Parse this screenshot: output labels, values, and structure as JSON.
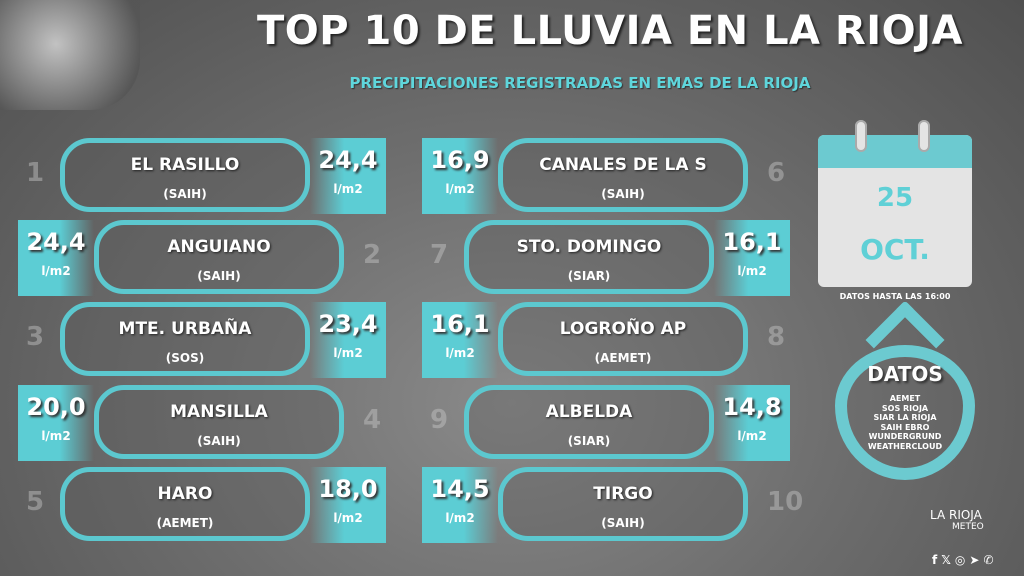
{
  "header": {
    "title": "TOP 10 DE LLUVIA EN LA RIOJA",
    "subtitle": "PRECIPITACIONES REGISTRADAS EN EMAS DE LA RIOJA"
  },
  "unit": "l/m2",
  "ranking": [
    {
      "rank": "1",
      "name": "EL RASILLO",
      "source": "(SAIH)",
      "value": "24,4"
    },
    {
      "rank": "2",
      "name": "ANGUIANO",
      "source": "(SAIH)",
      "value": "24,4"
    },
    {
      "rank": "3",
      "name": "MTE. URBAÑA",
      "source": "(SOS)",
      "value": "23,4"
    },
    {
      "rank": "4",
      "name": "MANSILLA",
      "source": "(SAIH)",
      "value": "20,0"
    },
    {
      "rank": "5",
      "name": "HARO",
      "source": "(AEMET)",
      "value": "18,0"
    },
    {
      "rank": "6",
      "name": "CANALES DE LA S",
      "source": "(SAIH)",
      "value": "16,9"
    },
    {
      "rank": "7",
      "name": "STO. DOMINGO",
      "source": "(SIAR)",
      "value": "16,1"
    },
    {
      "rank": "8",
      "name": "LOGROÑO AP",
      "source": "(AEMET)",
      "value": "16,1"
    },
    {
      "rank": "9",
      "name": "ALBELDA",
      "source": "(SIAR)",
      "value": "14,8"
    },
    {
      "rank": "10",
      "name": "TIRGO",
      "source": "(SAIH)",
      "value": "14,5"
    }
  ],
  "calendar": {
    "day": "25",
    "month": "OCT.",
    "note": "DATOS HASTA LAS 16:00"
  },
  "sources": {
    "title": "DATOS",
    "list": [
      "AEMET",
      "SOS RIOJA",
      "SIAR LA RIOJA",
      "SAIH EBRO",
      "WUNDERGRUND",
      "WEATHERCLOUD"
    ]
  },
  "logo": {
    "name": "LA RIOJA",
    "sub": "METEO"
  },
  "social": [
    "facebook-icon",
    "x-icon",
    "instagram-icon",
    "telegram-icon",
    "whatsapp-icon"
  ],
  "colors": {
    "accent": "#5ccdd4"
  }
}
